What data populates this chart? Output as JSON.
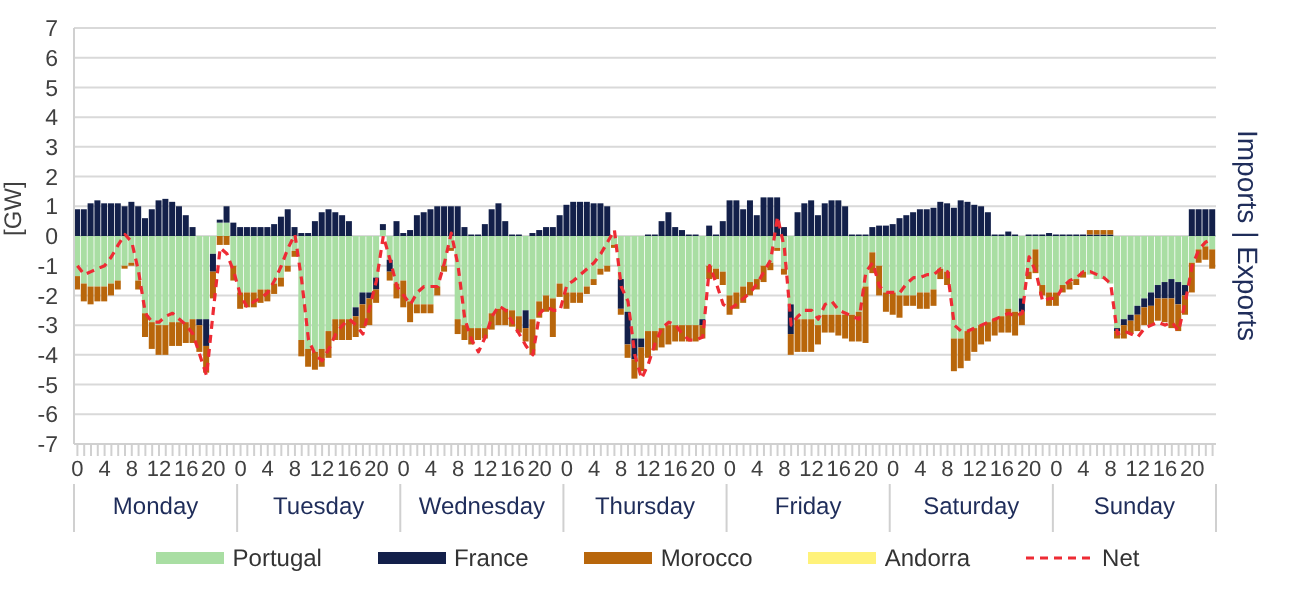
{
  "chart_data": {
    "type": "bar",
    "stacked": true,
    "ylabel": "[GW]",
    "y2label": "Imports | Exports",
    "categories": [
      "0",
      null,
      null,
      null,
      "4",
      null,
      null,
      null,
      "8",
      null,
      null,
      null,
      "12",
      null,
      null,
      null,
      "16",
      null,
      null,
      null,
      "20",
      null,
      null,
      null,
      "0",
      null,
      null,
      null,
      "4",
      null,
      null,
      null,
      "8",
      null,
      null,
      null,
      "12",
      null,
      null,
      null,
      "16",
      null,
      null,
      null,
      "20",
      null,
      null,
      null,
      "0",
      null,
      null,
      null,
      "4",
      null,
      null,
      null,
      "8",
      null,
      null,
      null,
      "12",
      null,
      null,
      null,
      "16",
      null,
      null,
      null,
      "20",
      null,
      null,
      null,
      "0",
      null,
      null,
      null,
      "4",
      null,
      null,
      null,
      "8",
      null,
      null,
      null,
      "12",
      null,
      null,
      null,
      "16",
      null,
      null,
      null,
      "20",
      null,
      null,
      null,
      "0",
      null,
      null,
      null,
      "4",
      null,
      null,
      null,
      "8",
      null,
      null,
      null,
      "12",
      null,
      null,
      null,
      "16",
      null,
      null,
      null,
      "20",
      null,
      null,
      null,
      "0",
      null,
      null,
      null,
      "4",
      null,
      null,
      null,
      "8",
      null,
      null,
      null,
      "12",
      null,
      null,
      null,
      "16",
      null,
      null,
      null,
      "20",
      null,
      null,
      null,
      "0",
      null,
      null,
      null,
      "4",
      null,
      null,
      null,
      "8",
      null,
      null,
      null,
      "12",
      null,
      null,
      null,
      "16",
      null,
      null,
      null,
      "20",
      null,
      null,
      null
    ],
    "annotations": [
      "Monday",
      "Tuesday",
      "Wednesday",
      "Thursday",
      "Friday",
      "Saturday",
      "Sunday"
    ],
    "ylim": [
      -7,
      7
    ],
    "yticks": [
      -7,
      -6,
      -5,
      -4,
      -3,
      -2,
      -1,
      0,
      1,
      2,
      3,
      4,
      5,
      6,
      7
    ],
    "grid": "y",
    "legend": "bottom",
    "line_style": "dashed",
    "series": [
      {
        "name": "Portugal",
        "color": "#a9dea3",
        "values": [
          -1.35,
          -1.6,
          -1.7,
          -1.7,
          -1.7,
          -1.6,
          -1.5,
          -1.0,
          -0.9,
          -1.5,
          -2.6,
          -2.9,
          -3.0,
          -3.0,
          -2.9,
          -2.9,
          -2.9,
          -2.8,
          -2.8,
          -2.8,
          -0.6,
          0.45,
          0.45,
          -1.0,
          -1.9,
          -1.9,
          -1.9,
          -1.8,
          -1.8,
          -1.6,
          -1.4,
          -1.0,
          -0.5,
          -3.5,
          -3.8,
          -3.9,
          -3.8,
          -3.2,
          -2.8,
          -2.8,
          -2.8,
          -2.4,
          -1.9,
          -1.9,
          -1.4,
          0.2,
          -0.8,
          -1.6,
          -1.5,
          -2.2,
          -2.3,
          -2.3,
          -2.3,
          -1.7,
          -1.0,
          -0.4,
          -2.8,
          -3.0,
          -3.1,
          -3.1,
          -3.1,
          -2.6,
          -2.45,
          -2.45,
          -2.5,
          -2.7,
          -2.5,
          -2.8,
          -2.2,
          -2.0,
          -2.1,
          -1.6,
          -1.9,
          -1.9,
          -1.9,
          -1.7,
          -1.45,
          -1.1,
          -1.0,
          -0.3,
          -1.45,
          -2.55,
          -3.45,
          -3.45,
          -3.2,
          -3.2,
          -3.1,
          -3.0,
          -3.0,
          -3.0,
          -3.0,
          -3.0,
          -2.8,
          -1.0,
          -1.1,
          -1.2,
          -2.0,
          -1.9,
          -1.7,
          -1.55,
          -1.45,
          -1.0,
          -0.9,
          -0.4,
          -1.1,
          -2.3,
          -2.8,
          -2.8,
          -2.8,
          -3.0,
          -2.65,
          -2.65,
          -2.65,
          -2.65,
          -2.65,
          -2.55,
          -1.7,
          -0.55,
          -1.0,
          -1.9,
          -1.9,
          -2.0,
          -2.0,
          -2.0,
          -1.9,
          -1.9,
          -1.8,
          -1.1,
          -1.2,
          -3.45,
          -3.45,
          -3.2,
          -3.1,
          -3.0,
          -2.9,
          -2.8,
          -2.7,
          -2.45,
          -2.55,
          -2.1,
          -1.2,
          -0.45,
          -1.65,
          -1.9,
          -1.9,
          -1.65,
          -1.55,
          -1.45,
          -1.2,
          -1.3,
          -1.45,
          -1.45,
          -1.6,
          -3.1,
          -2.8,
          -2.65,
          -2.35,
          -2.1,
          -1.9,
          -1.65,
          -1.55,
          -1.45,
          -1.55,
          -1.65,
          -0.9,
          -0.45,
          -0.35,
          -0.45
        ]
      },
      {
        "name": "France",
        "color": "#13204a",
        "values": [
          0.9,
          0.9,
          1.1,
          1.2,
          1.1,
          1.1,
          1.1,
          1.0,
          1.15,
          1.0,
          0.6,
          0.9,
          1.2,
          1.25,
          1.15,
          1.0,
          0.7,
          0.3,
          -0.2,
          -0.9,
          -0.6,
          0.1,
          0.55,
          0.45,
          0.3,
          0.3,
          0.3,
          0.3,
          0.3,
          0.4,
          0.65,
          0.9,
          0.3,
          0.1,
          0.1,
          0.5,
          0.8,
          0.9,
          0.8,
          0.7,
          0.5,
          -0.3,
          -0.4,
          -0.2,
          -0.4,
          0.2,
          -0.4,
          0.5,
          0.1,
          0.2,
          0.7,
          0.8,
          0.9,
          1.0,
          1.0,
          1.0,
          1.0,
          0.3,
          0.05,
          0.05,
          0.4,
          0.9,
          1.1,
          0.5,
          0.05,
          0.05,
          -0.6,
          0.1,
          0.2,
          0.3,
          0.3,
          0.7,
          1.05,
          1.15,
          1.15,
          1.15,
          1.1,
          1.1,
          1.0,
          null,
          -1.0,
          -1.1,
          -0.7,
          -0.3,
          0.05,
          0.05,
          0.5,
          0.8,
          0.3,
          0.2,
          0.05,
          0.05,
          -0.2,
          0.35,
          0.05,
          0.5,
          1.2,
          1.2,
          0.9,
          1.2,
          0.7,
          1.3,
          1.3,
          1.3,
          0.3,
          -1.0,
          0.8,
          1.1,
          1.2,
          0.7,
          1.1,
          1.2,
          1.2,
          1.0,
          0.05,
          0.05,
          0.05,
          0.3,
          0.35,
          0.35,
          0.4,
          0.6,
          0.7,
          0.8,
          0.9,
          0.9,
          0.95,
          1.15,
          1.1,
          0.95,
          1.2,
          1.15,
          1.05,
          1.0,
          0.8,
          0.05,
          0.05,
          0.15,
          0.05,
          -0.45,
          0.05,
          0.05,
          0.05,
          0.1,
          0.05,
          0.05,
          0.05,
          0.05,
          0.05,
          0.05,
          0.05,
          0.05,
          0.05,
          -0.1,
          -0.2,
          -0.2,
          -0.3,
          -0.3,
          -0.45,
          -0.45,
          -0.55,
          -0.65,
          -0.75,
          -0.35,
          0.9,
          0.9,
          0.9,
          0.9
        ]
      },
      {
        "name": "Morocco",
        "color": "#b8660b",
        "values": [
          -0.45,
          -0.6,
          -0.6,
          -0.5,
          -0.5,
          -0.4,
          -0.3,
          -0.1,
          -0.1,
          -0.3,
          -0.8,
          -0.9,
          -1.0,
          -1.0,
          -0.8,
          -0.8,
          -0.7,
          -0.8,
          -0.9,
          -0.9,
          -0.9,
          -0.3,
          -0.3,
          -0.5,
          -0.55,
          -0.5,
          -0.5,
          -0.45,
          -0.4,
          -0.35,
          -0.3,
          -0.2,
          -0.2,
          -0.55,
          -0.6,
          -0.6,
          -0.6,
          -0.9,
          -0.7,
          -0.7,
          -0.7,
          -0.7,
          -0.8,
          -0.9,
          -0.45,
          null,
          -0.3,
          -0.5,
          -0.9,
          -0.7,
          -0.3,
          -0.3,
          -0.3,
          -0.3,
          -0.2,
          -0.1,
          -0.5,
          -0.5,
          -0.55,
          -0.4,
          -0.35,
          -0.55,
          -0.55,
          -0.55,
          -0.55,
          -0.55,
          -0.45,
          -1.2,
          -0.55,
          -0.55,
          -1.3,
          -0.45,
          -0.55,
          -0.35,
          -0.35,
          -0.25,
          -0.2,
          -0.2,
          -0.2,
          -0.1,
          -0.2,
          -0.45,
          -0.65,
          -0.8,
          -0.9,
          -0.65,
          -0.65,
          -0.65,
          -0.55,
          -0.55,
          -0.55,
          -0.55,
          -0.45,
          -0.45,
          -0.35,
          -0.45,
          -0.65,
          -0.55,
          -0.55,
          -0.45,
          -0.35,
          -0.55,
          -0.25,
          -0.1,
          -0.2,
          -0.7,
          -1.1,
          -1.1,
          -1.1,
          -0.65,
          -0.6,
          -0.6,
          -0.7,
          -0.8,
          -0.9,
          -1.0,
          -1.9,
          -0.7,
          -1.0,
          -0.65,
          -0.75,
          -0.75,
          -0.35,
          -0.35,
          -0.55,
          -0.55,
          -0.55,
          -0.35,
          -0.45,
          -1.1,
          -1.0,
          -1.0,
          -0.8,
          -0.65,
          -0.65,
          -0.55,
          -0.55,
          -0.8,
          -0.8,
          -0.45,
          -0.25,
          -0.8,
          -0.35,
          -0.45,
          -0.45,
          -0.25,
          -0.25,
          -0.2,
          -0.2,
          0.15,
          0.15,
          0.15,
          0.15,
          -0.25,
          -0.45,
          -0.45,
          -0.55,
          -0.6,
          -0.65,
          -0.75,
          -0.8,
          -1.0,
          -0.9,
          -0.65,
          -1.0,
          -0.45,
          -0.45,
          -0.65
        ]
      },
      {
        "name": "Andorra",
        "color": "#fff27a",
        "values": [
          0,
          0,
          0,
          0,
          0,
          0,
          0,
          0,
          0,
          0,
          0,
          0,
          0,
          0,
          0,
          0,
          0,
          0,
          0,
          0,
          0,
          0,
          0,
          0,
          0,
          0,
          0,
          0,
          0,
          0,
          0,
          0,
          0,
          0,
          0,
          0,
          0,
          0,
          0,
          0,
          0,
          0,
          0,
          0,
          0,
          0,
          0,
          0,
          0,
          0,
          0,
          0,
          0,
          0,
          0,
          0,
          0,
          0,
          0,
          0,
          0,
          0,
          0,
          0,
          0,
          0,
          0,
          0,
          0,
          0,
          0,
          0,
          0,
          0,
          0,
          0,
          0,
          0,
          0,
          0,
          0,
          0,
          0,
          0,
          0,
          0,
          0,
          0,
          0,
          0,
          0,
          0,
          0,
          0,
          0,
          0,
          0,
          0,
          0,
          0,
          0,
          0,
          0,
          0,
          0,
          0,
          0,
          0,
          0,
          0,
          0,
          0,
          0,
          0,
          0,
          0,
          0,
          0,
          0,
          0,
          0,
          0,
          0,
          0,
          0,
          0,
          0,
          0,
          0,
          0,
          0,
          0,
          0,
          0,
          0,
          0,
          0,
          0,
          0,
          0,
          0,
          0,
          0,
          0,
          0,
          0,
          0,
          0,
          0,
          0,
          0,
          0,
          0,
          0,
          0,
          0,
          0,
          0,
          0,
          0,
          0,
          0,
          0,
          0,
          0,
          0,
          0,
          0
        ]
      },
      {
        "name": "Net",
        "type": "line",
        "color": "#ee2b34",
        "values": [
          -1.0,
          -1.3,
          -1.2,
          -1.1,
          -1.0,
          -0.7,
          -0.3,
          0.05,
          -0.2,
          -1.2,
          -2.6,
          -2.9,
          -2.9,
          -2.7,
          -2.6,
          -2.8,
          -3.0,
          -3.3,
          -4.0,
          -4.7,
          -2.5,
          -0.4,
          -0.6,
          -1.2,
          -2.0,
          -2.4,
          -2.2,
          -2.1,
          -1.9,
          -1.5,
          -1.0,
          -0.4,
          0.05,
          -1.5,
          -3.5,
          -4.0,
          -4.2,
          -3.8,
          -3.3,
          -3.0,
          -2.8,
          -3.0,
          -3.3,
          -2.4,
          -1.5,
          0.0,
          -0.8,
          -1.7,
          -2.0,
          -2.3,
          -1.9,
          -1.7,
          -1.7,
          -1.7,
          -0.9,
          0.1,
          -1.0,
          -2.8,
          -3.5,
          -3.9,
          -3.4,
          -2.7,
          -2.35,
          -2.5,
          -2.9,
          -3.3,
          -3.7,
          -4.0,
          -2.6,
          -2.4,
          -2.5,
          -2.5,
          -1.65,
          -1.5,
          -1.3,
          -1.1,
          -0.9,
          -0.6,
          -0.2,
          0.2,
          -1.7,
          -2.2,
          -4.0,
          -4.8,
          -4.3,
          -3.6,
          -3.1,
          -2.9,
          -3.0,
          -3.3,
          -3.5,
          -3.5,
          -3.4,
          -1.0,
          -1.6,
          -2.3,
          -2.45,
          -2.3,
          -2.1,
          -1.9,
          -1.6,
          -1.2,
          -0.8,
          0.65,
          -0.4,
          -3.0,
          -2.7,
          -2.5,
          -2.5,
          -2.8,
          -2.3,
          -2.2,
          -2.5,
          -2.6,
          -2.7,
          -2.8,
          -1.2,
          -0.9,
          -1.7,
          -1.9,
          -1.9,
          -1.9,
          -1.6,
          -1.4,
          -1.4,
          -1.3,
          -1.3,
          -1.1,
          -1.2,
          -3.0,
          -3.2,
          -3.2,
          -3.1,
          -3.0,
          -2.9,
          -2.8,
          -2.7,
          -2.6,
          -2.7,
          -2.6,
          -0.7,
          -1.2,
          -2.2,
          -2.1,
          -2.1,
          -1.7,
          -1.5,
          -1.4,
          -1.2,
          -1.2,
          -1.3,
          -1.4,
          -1.6,
          -3.3,
          -3.2,
          -3.3,
          -3.4,
          -3.1,
          -3.0,
          -2.9,
          -3.0,
          -2.9,
          -3.2,
          -2.2,
          -1.0,
          -0.45,
          -0.2,
          -0.1
        ]
      }
    ]
  }
}
